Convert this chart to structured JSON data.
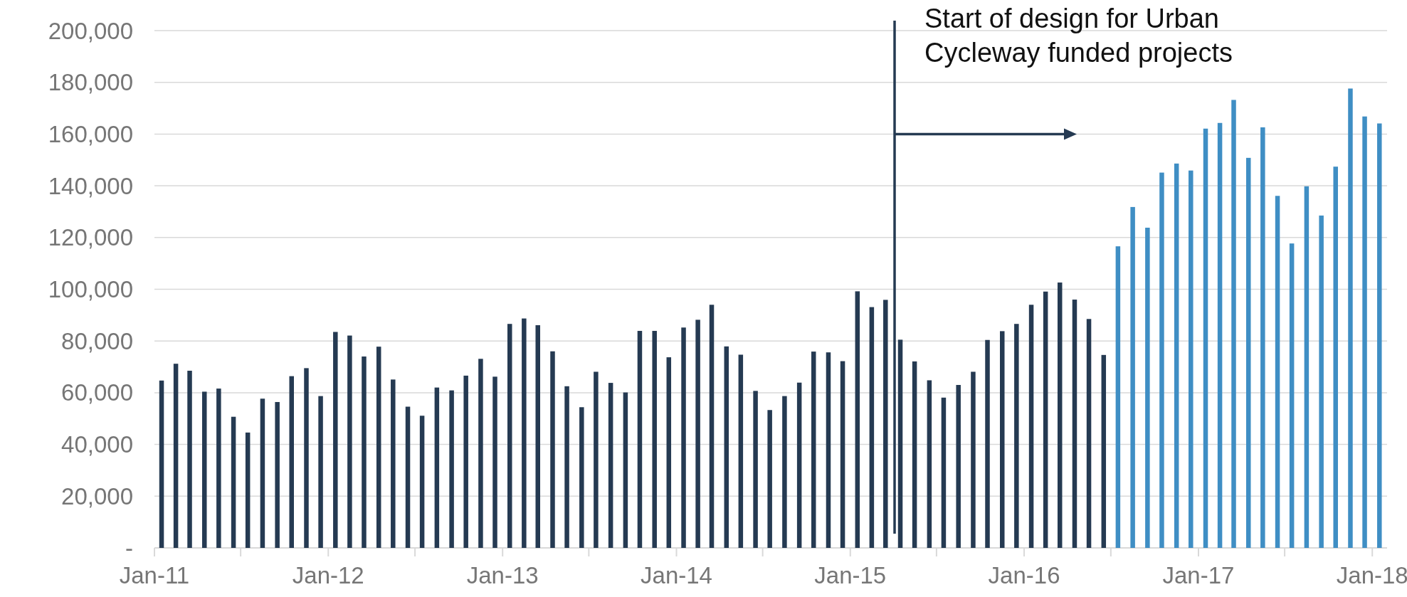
{
  "chart_data": {
    "type": "bar",
    "grid": "y",
    "xlim": [
      "2011-01",
      "2018-02"
    ],
    "xticks": [
      {
        "value": "2011-01",
        "label": "Jan-11"
      },
      {
        "value": "2011-07",
        "label": null
      },
      {
        "value": "2012-01",
        "label": "Jan-12"
      },
      {
        "value": "2012-07",
        "label": null
      },
      {
        "value": "2013-01",
        "label": "Jan-13"
      },
      {
        "value": "2013-07",
        "label": null
      },
      {
        "value": "2014-01",
        "label": "Jan-14"
      },
      {
        "value": "2014-07",
        "label": null
      },
      {
        "value": "2015-01",
        "label": "Jan-15"
      },
      {
        "value": "2015-07",
        "label": null
      },
      {
        "value": "2016-01",
        "label": "Jan-16"
      },
      {
        "value": "2016-07",
        "label": null
      },
      {
        "value": "2017-01",
        "label": "Jan-17"
      },
      {
        "value": "2017-07",
        "label": null
      },
      {
        "value": "2018-01",
        "label": "Jan-18"
      }
    ],
    "ylim": [
      0,
      200000
    ],
    "yticks": [
      {
        "value": 0,
        "label": "-"
      },
      {
        "value": 20000,
        "label": "20,000"
      },
      {
        "value": 40000,
        "label": "40,000"
      },
      {
        "value": 60000,
        "label": "60,000"
      },
      {
        "value": 80000,
        "label": "80,000"
      },
      {
        "value": 100000,
        "label": "100,000"
      },
      {
        "value": 120000,
        "label": "120,000"
      },
      {
        "value": 140000,
        "label": "140,000"
      },
      {
        "value": 160000,
        "label": "160,000"
      },
      {
        "value": 180000,
        "label": "180,000"
      },
      {
        "value": 200000,
        "label": "200,000"
      }
    ],
    "series": [
      {
        "color": "#253a52",
        "x": [
          "2011-01-16",
          "2011-02-15",
          "2011-03-16",
          "2011-04-16",
          "2011-05-16",
          "2011-06-16",
          "2011-07-16",
          "2011-08-16",
          "2011-09-16",
          "2011-10-16",
          "2011-11-16",
          "2011-12-16",
          "2012-01-16",
          "2012-02-15",
          "2012-03-16",
          "2012-04-16",
          "2012-05-16",
          "2012-06-16",
          "2012-07-16",
          "2012-08-16",
          "2012-09-16",
          "2012-10-16",
          "2012-11-16",
          "2012-12-16",
          "2013-01-16",
          "2013-02-15",
          "2013-03-16",
          "2013-04-16",
          "2013-05-16",
          "2013-06-16",
          "2013-07-16",
          "2013-08-16",
          "2013-09-16",
          "2013-10-16",
          "2013-11-16",
          "2013-12-16",
          "2014-01-16",
          "2014-02-15",
          "2014-03-16",
          "2014-04-16",
          "2014-05-16",
          "2014-06-16",
          "2014-07-16",
          "2014-08-16",
          "2014-09-16",
          "2014-10-16",
          "2014-11-16",
          "2014-12-16",
          "2015-01-16",
          "2015-02-15",
          "2015-03-16",
          "2015-04-16",
          "2015-05-16",
          "2015-06-16",
          "2015-07-16",
          "2015-08-16",
          "2015-09-16",
          "2015-10-16",
          "2015-11-16",
          "2015-12-16",
          "2016-01-16",
          "2016-02-15",
          "2016-03-16",
          "2016-04-16",
          "2016-05-16",
          "2016-06-16"
        ],
        "values": [
          64700,
          71200,
          68500,
          60400,
          61600,
          50700,
          44600,
          57700,
          56400,
          66400,
          69500,
          58700,
          83500,
          82100,
          74000,
          77800,
          65100,
          54600,
          51100,
          62000,
          60900,
          66600,
          73100,
          66200,
          86600,
          88700,
          86100,
          76000,
          62500,
          54400,
          68100,
          63800,
          60100,
          83900,
          83900,
          73700,
          85200,
          88200,
          94000,
          77900,
          74700,
          60700,
          53300,
          58700,
          63900,
          75900,
          75600,
          72200,
          99200,
          93100,
          95900,
          80500,
          72100,
          64800,
          58100,
          63000,
          68100,
          80400,
          83800,
          86600,
          94000,
          99100,
          102600,
          96000,
          88500,
          74600
        ]
      },
      {
        "color": "#3f8ec4",
        "x": [
          "2016-07-16",
          "2016-08-16",
          "2016-09-16",
          "2016-10-16",
          "2016-11-16",
          "2016-12-16",
          "2017-01-16",
          "2017-02-15",
          "2017-03-16",
          "2017-04-16",
          "2017-05-16",
          "2017-06-16",
          "2017-07-16",
          "2017-08-16",
          "2017-09-16",
          "2017-10-16",
          "2017-11-16",
          "2017-12-16",
          "2018-01-16"
        ],
        "values": [
          116600,
          131800,
          123800,
          145100,
          148600,
          145900,
          162100,
          164300,
          173200,
          150800,
          162600,
          136100,
          117700,
          139800,
          128500,
          147400,
          177600,
          166800,
          164100
        ]
      }
    ],
    "ref_lines": [
      {
        "axis": "x",
        "value": "2015-04-04",
        "label": "Start of design for Urban Cycleway funded projects",
        "color": "#253a52"
      }
    ]
  }
}
